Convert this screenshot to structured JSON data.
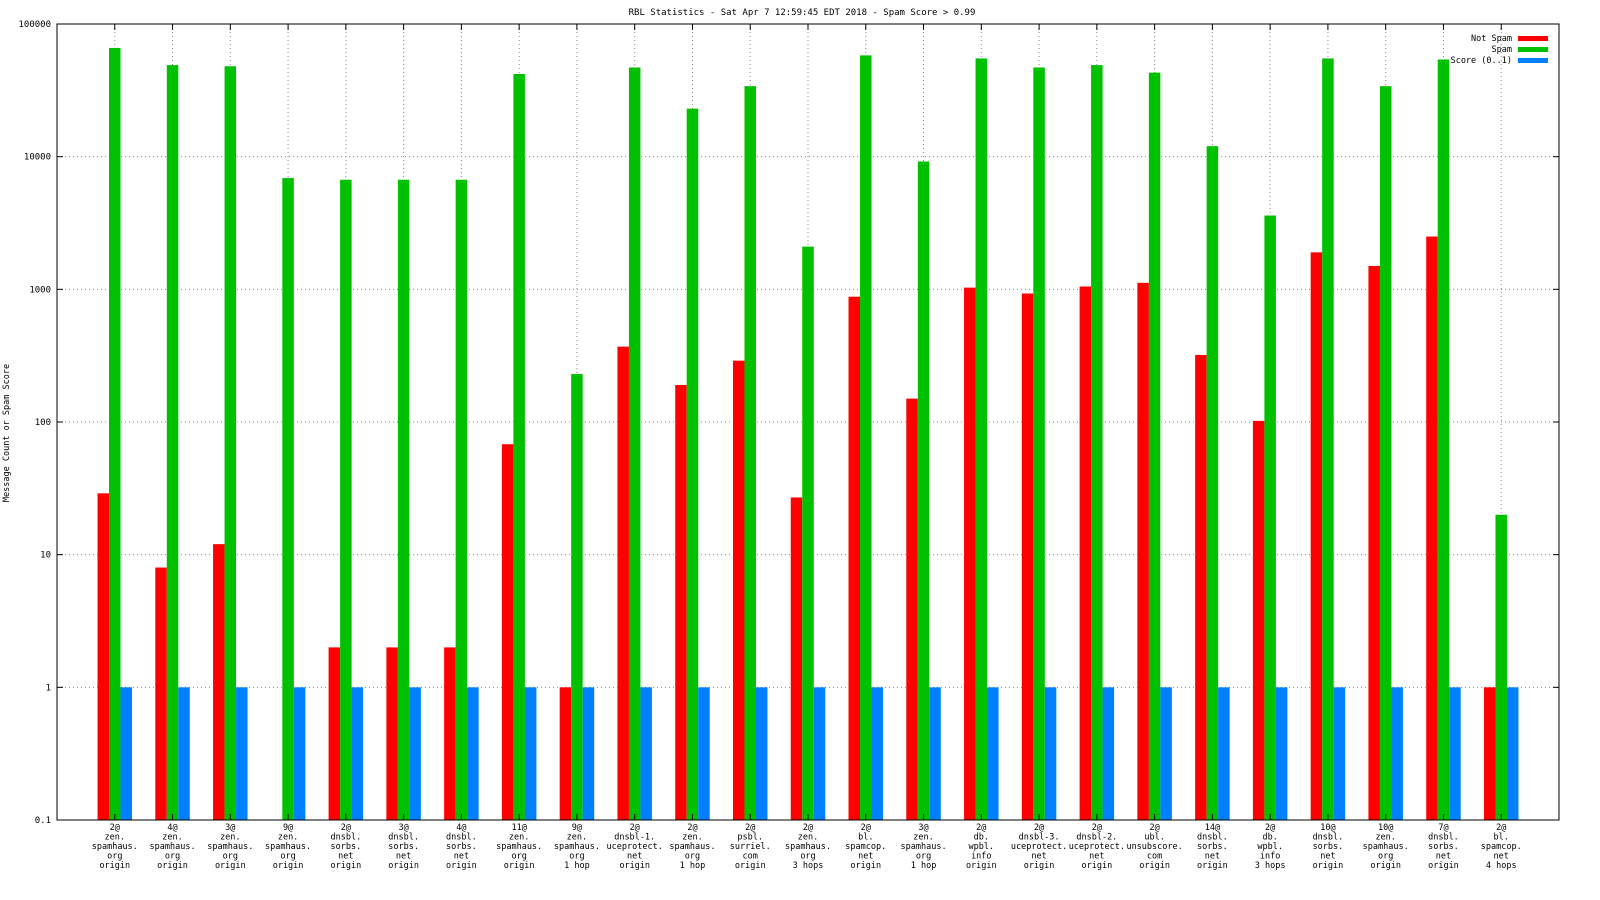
{
  "chart_data": {
    "type": "bar",
    "title": "RBL Statistics - Sat Apr  7 12:59:45 EDT 2018 - Spam Score > 0.99",
    "ylabel": "Message Count or Spam Score",
    "xlabel": "",
    "yscale": "log",
    "ylim": [
      0.1,
      100000
    ],
    "yticks": [
      "0.1",
      "1",
      "10",
      "100",
      "1000",
      "10000",
      "100000"
    ],
    "grid": true,
    "legend_position": "top-right",
    "categories": [
      [
        "2@",
        "zen.",
        "spamhaus.",
        "org",
        "origin"
      ],
      [
        "4@",
        "zen.",
        "spamhaus.",
        "org",
        "origin"
      ],
      [
        "3@",
        "zen.",
        "spamhaus.",
        "org",
        "origin"
      ],
      [
        "9@",
        "zen.",
        "spamhaus.",
        "org",
        "origin"
      ],
      [
        "2@",
        "dnsbl.",
        "sorbs.",
        "net",
        "origin"
      ],
      [
        "3@",
        "dnsbl.",
        "sorbs.",
        "net",
        "origin"
      ],
      [
        "4@",
        "dnsbl.",
        "sorbs.",
        "net",
        "origin"
      ],
      [
        "11@",
        "zen.",
        "spamhaus.",
        "org",
        "origin"
      ],
      [
        "9@",
        "zen.",
        "spamhaus.",
        "org",
        "1 hop"
      ],
      [
        "2@",
        "dnsbl-1.",
        "uceprotect.",
        "net",
        "origin"
      ],
      [
        "2@",
        "zen.",
        "spamhaus.",
        "org",
        "1 hop"
      ],
      [
        "2@",
        "psbl.",
        "surriel.",
        "com",
        "origin"
      ],
      [
        "2@",
        "zen.",
        "spamhaus.",
        "org",
        "3 hops"
      ],
      [
        "2@",
        "bl.",
        "spamcop.",
        "net",
        "origin"
      ],
      [
        "3@",
        "zen.",
        "spamhaus.",
        "org",
        "1 hop"
      ],
      [
        "2@",
        "db.",
        "wpbl.",
        "info",
        "origin"
      ],
      [
        "2@",
        "dnsbl-3.",
        "uceprotect.",
        "net",
        "origin"
      ],
      [
        "2@",
        "dnsbl-2.",
        "uceprotect.",
        "net",
        "origin"
      ],
      [
        "2@",
        "ubl.",
        "unsubscore.",
        "com",
        "origin"
      ],
      [
        "14@",
        "dnsbl.",
        "sorbs.",
        "net",
        "origin"
      ],
      [
        "2@",
        "db.",
        "wpbl.",
        "info",
        "3 hops"
      ],
      [
        "10@",
        "dnsbl.",
        "sorbs.",
        "net",
        "origin"
      ],
      [
        "10@",
        "zen.",
        "spamhaus.",
        "org",
        "origin"
      ],
      [
        "7@",
        "dnsbl.",
        "sorbs.",
        "net",
        "origin"
      ],
      [
        "2@",
        "bl.",
        "spamcop.",
        "net",
        "4 hops"
      ]
    ],
    "series": [
      {
        "name": "Not Spam",
        "color": "#ff0000",
        "values": [
          29,
          8,
          12,
          0,
          2,
          2,
          2,
          68,
          1,
          370,
          190,
          290,
          27,
          880,
          150,
          1030,
          930,
          1050,
          1120,
          320,
          102,
          1900,
          1500,
          2500,
          1
        ]
      },
      {
        "name": "Spam",
        "color": "#00c000",
        "values": [
          66000,
          49000,
          48000,
          6900,
          6700,
          6700,
          6700,
          42000,
          230,
          47000,
          23000,
          34000,
          2100,
          58000,
          9200,
          55000,
          47000,
          49000,
          43000,
          12000,
          3600,
          55000,
          34000,
          54000,
          20
        ]
      },
      {
        "name": "Score (0..1)",
        "color": "#0080ff",
        "values": [
          1,
          1,
          1,
          1,
          1,
          1,
          1,
          1,
          1,
          1,
          1,
          1,
          1,
          1,
          1,
          1,
          1,
          1,
          1,
          1,
          1,
          1,
          1,
          1,
          1
        ]
      }
    ]
  }
}
